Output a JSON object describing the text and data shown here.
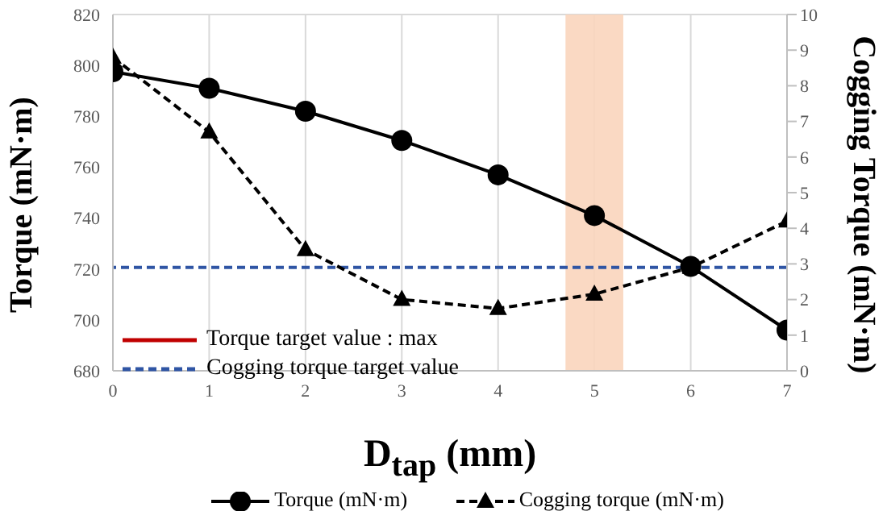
{
  "chart_data": {
    "type": "line",
    "xlabel": "D$_{tap}$ (mm)",
    "ylabel": "Torque (mN·m)",
    "y2label": "Cogging Torque (mN·m)",
    "x": [
      0,
      1,
      2,
      3,
      4,
      5,
      6,
      7
    ],
    "series": [
      {
        "name": "Torque (mN·m)",
        "color": "#000000",
        "values": [
          797.5,
          791,
          782,
          770.5,
          757,
          741,
          721,
          696
        ],
        "marker": "circle",
        "line_style": "solid"
      },
      {
        "name": "Cogging torque (mN·m)",
        "color": "#000000",
        "values": [
          8.8,
          6.7,
          3.4,
          2.0,
          1.75,
          2.15,
          2.9,
          4.2
        ],
        "marker": "triangle",
        "line_style": "dashed",
        "axis": "y2"
      }
    ],
    "xlim": [
      0,
      7
    ],
    "xticks": [
      0,
      1,
      2,
      3,
      4,
      5,
      6,
      7
    ],
    "ylim": [
      680,
      820
    ],
    "yticks": [
      680,
      700,
      720,
      740,
      760,
      780,
      800,
      820
    ],
    "y2lim": [
      0,
      10
    ],
    "y2ticks": [
      0,
      1,
      2,
      3,
      4,
      5,
      6,
      7,
      8,
      9,
      10
    ],
    "ref_lines": [
      {
        "axis": "y2",
        "value": 2.9,
        "label": "Cogging torque target value",
        "color": "#2f55a4",
        "line_style": "dashed"
      }
    ],
    "bands": [
      {
        "axis": "x",
        "from": 4.7,
        "to": 5.3,
        "color": "#f9d5bc"
      }
    ],
    "annotations": [
      "Torque target value : max"
    ],
    "grid": true,
    "legend": "bottom"
  }
}
